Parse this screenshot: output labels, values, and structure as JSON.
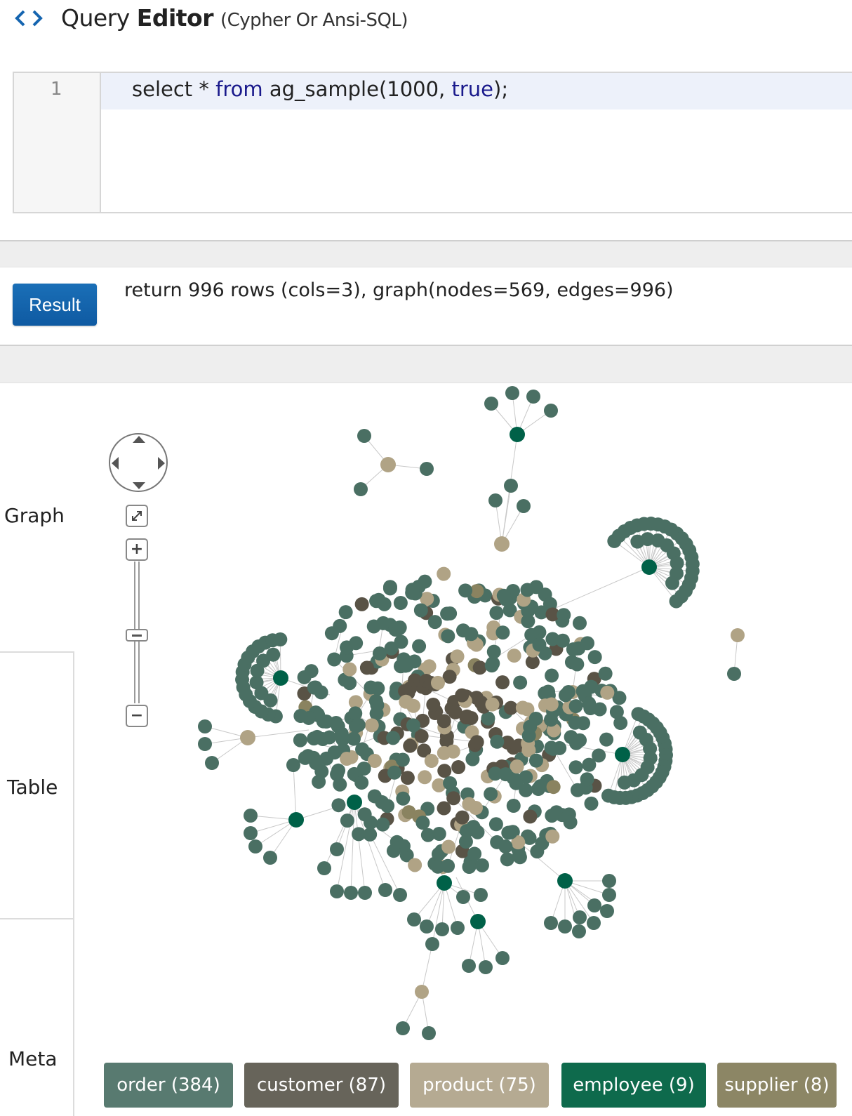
{
  "header": {
    "title_regular": "Query Editor",
    "title_bold": "Editor",
    "title_first": "Query",
    "subtitle": "(Cypher Or Ansi-SQL)",
    "icon": "code-brackets-icon"
  },
  "editor": {
    "line_number": "1",
    "code": {
      "t1": "select * ",
      "t2": "from",
      "t3": " ag_sample(1000, ",
      "t4": "true",
      "t5": ");"
    }
  },
  "result": {
    "button_label": "Result",
    "summary": "return 996 rows (cols=3), graph(nodes=569, edges=996)"
  },
  "tabs": {
    "graph": "Graph",
    "table": "Table",
    "meta": "Meta"
  },
  "controls": {
    "fit_icon": "expand-icon",
    "zoom_in": "+",
    "zoom_out": "−",
    "zoom_level": 0.55
  },
  "legend": [
    {
      "label": "order (384)",
      "color": "#587a70",
      "text_color": "#ffffff"
    },
    {
      "label": "customer (87)",
      "color": "#67645a",
      "text_color": "#ffffff"
    },
    {
      "label": "product (75)",
      "color": "#b5aa92",
      "text_color": "#ffffff"
    },
    {
      "label": "employee (9)",
      "color": "#0e6a4c",
      "text_color": "#ffffff"
    },
    {
      "label": "supplier (8)",
      "color": "#8c8665",
      "text_color": "#ffffff"
    }
  ],
  "colors": {
    "order": "#4a6f63",
    "customer": "#595346",
    "product": "#b0a385",
    "employee": "#006148",
    "supplier": "#8a8360",
    "edge": "#c8c8c8",
    "accent": "#1565b0"
  }
}
